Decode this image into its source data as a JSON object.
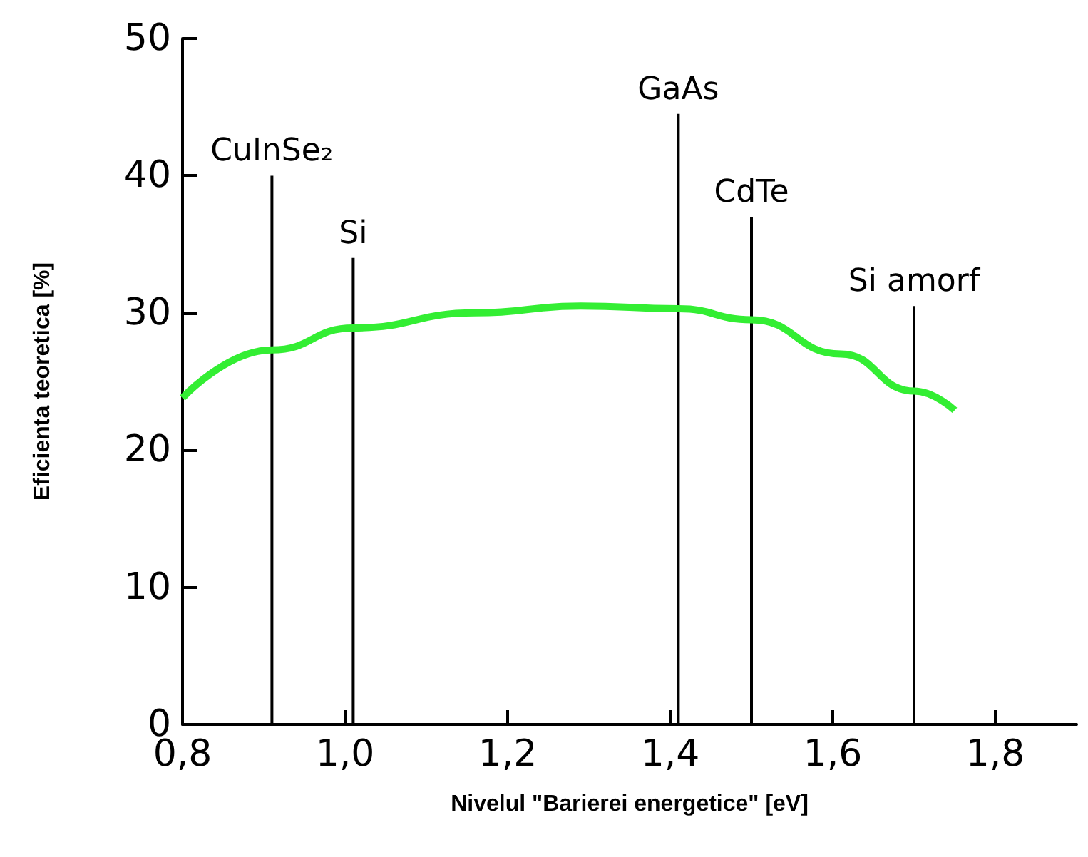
{
  "chart_data": {
    "type": "line",
    "xlabel": "Nivelul \"Barierei energetice\" [eV]",
    "ylabel": "Eficienta teoretica [%]",
    "xlim": [
      0.8,
      1.9
    ],
    "xticks": [
      {
        "value": 0.8,
        "label": "0,8"
      },
      {
        "value": 1.0,
        "label": "1,0"
      },
      {
        "value": 1.2,
        "label": "1,2"
      },
      {
        "value": 1.4,
        "label": "1,4"
      },
      {
        "value": 1.6,
        "label": "1,6"
      },
      {
        "value": 1.8,
        "label": "1,8"
      }
    ],
    "ylim": [
      0,
      50
    ],
    "yticks": [
      0,
      10,
      20,
      30,
      40,
      50
    ],
    "grid": false,
    "marker": "none",
    "series": [
      {
        "color": "#33ee33",
        "x": [
          0.8,
          0.91,
          1.01,
          1.16,
          1.29,
          1.41,
          1.5,
          1.61,
          1.7,
          1.75
        ],
        "values": [
          23.8,
          27.3,
          28.9,
          30.0,
          30.5,
          30.3,
          29.5,
          27,
          24.3,
          22.9
        ]
      },
      {
        "type": "bar",
        "color": "#000000",
        "x": [
          0.91,
          1.01,
          1.41,
          1.5,
          1.7
        ],
        "values": [
          40,
          34,
          44.5,
          37,
          30.5
        ]
      }
    ],
    "annotations": [
      {
        "text": "CuInSe₂",
        "x": 0.91,
        "y": 40
      },
      {
        "text": "Si",
        "x": 1.01,
        "y": 34
      },
      {
        "text": "GaAs",
        "x": 1.41,
        "y": 44.5
      },
      {
        "text": "CdTe",
        "x": 1.5,
        "y": 37
      },
      {
        "text": "Si amorf",
        "x": 1.7,
        "y": 30.5
      }
    ]
  }
}
